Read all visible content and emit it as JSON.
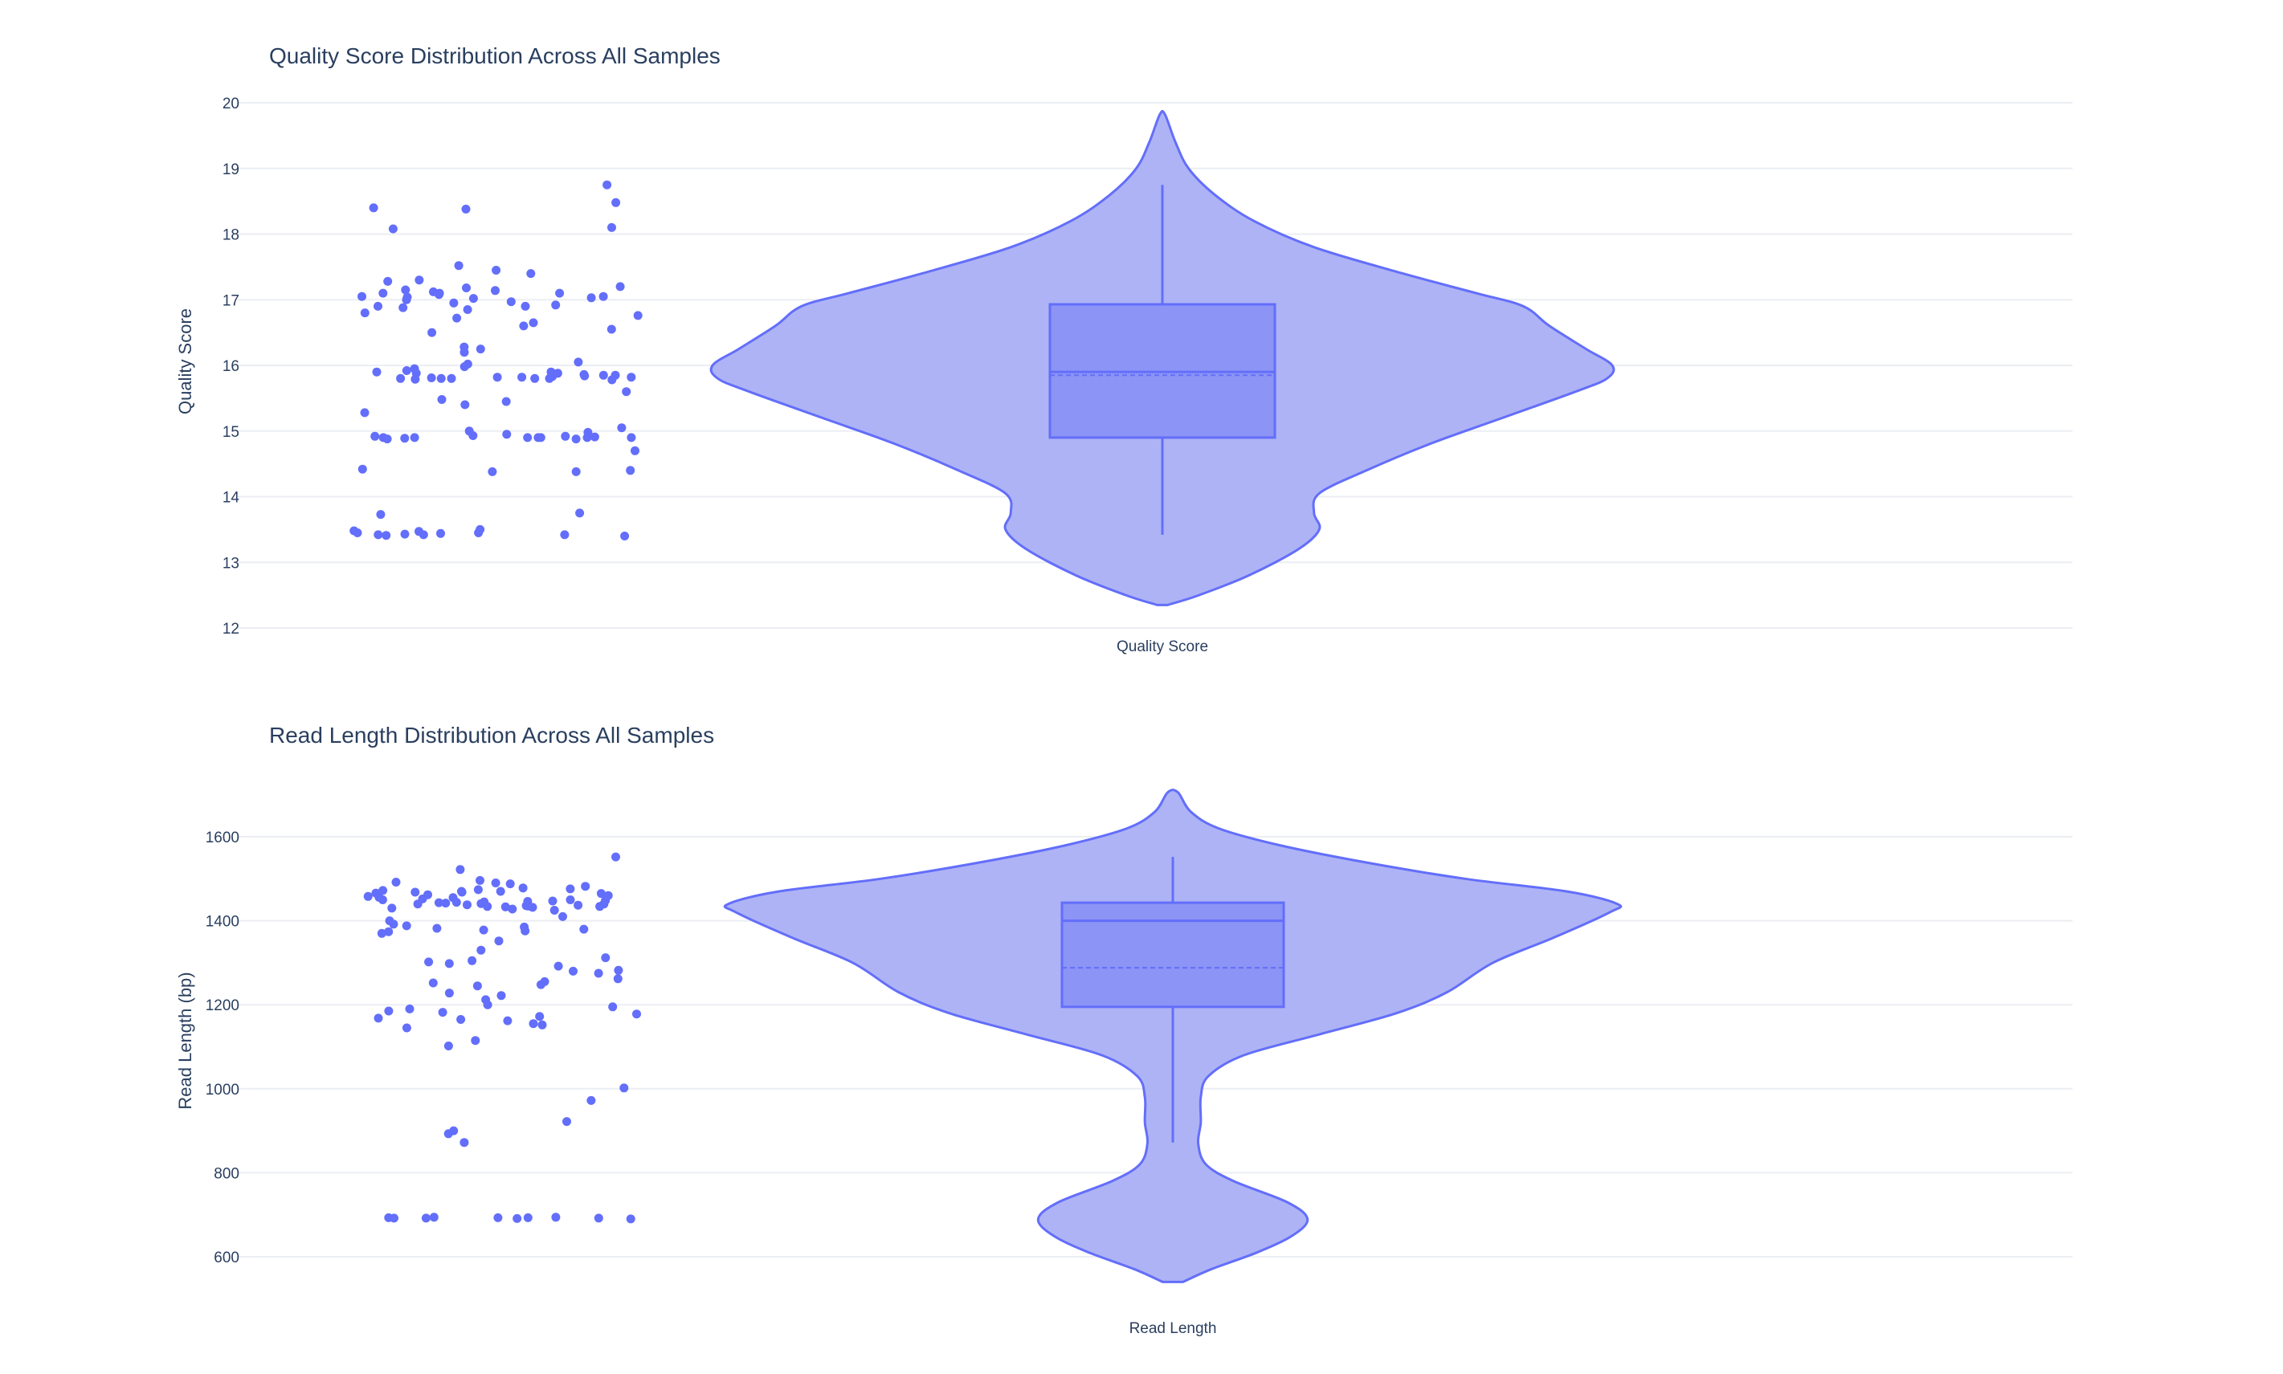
{
  "colors": {
    "accent": "#636efa",
    "violet_fill": "#aeb3f5",
    "box_fill": "#8c94f5",
    "grid": "#ebeef3",
    "text": "#2a3f5f"
  },
  "chart_data": [
    {
      "type": "violin",
      "title": "Quality Score Distribution Across All Samples",
      "ylabel": "Quality Score",
      "xlabel": "",
      "category": "Quality Score",
      "ylim": [
        12,
        20
      ],
      "yticks": [
        12,
        13,
        14,
        15,
        16,
        17,
        18,
        19,
        20
      ],
      "grid": true,
      "box": {
        "q1": 14.9,
        "median": 15.9,
        "mean": 15.85,
        "q3": 16.93,
        "lower_whisker": 13.42,
        "upper_whisker": 18.75
      },
      "kde_range": [
        12.35,
        19.82
      ],
      "kde_width": [
        [
          12.35,
          0.02
        ],
        [
          12.5,
          0.14
        ],
        [
          12.8,
          0.33
        ],
        [
          13.2,
          0.52
        ],
        [
          13.5,
          0.6
        ],
        [
          13.75,
          0.58
        ],
        [
          14.05,
          0.6
        ],
        [
          14.4,
          0.78
        ],
        [
          14.8,
          1.02
        ],
        [
          15.2,
          1.3
        ],
        [
          15.6,
          1.58
        ],
        [
          15.8,
          1.7
        ],
        [
          16.0,
          1.72
        ],
        [
          16.25,
          1.62
        ],
        [
          16.6,
          1.48
        ],
        [
          16.9,
          1.38
        ],
        [
          17.1,
          1.2
        ],
        [
          17.4,
          0.92
        ],
        [
          17.8,
          0.58
        ],
        [
          18.2,
          0.35
        ],
        [
          18.6,
          0.2
        ],
        [
          19.0,
          0.1
        ],
        [
          19.4,
          0.05
        ],
        [
          19.82,
          0.01
        ]
      ],
      "points": [
        18.75,
        18.48,
        18.4,
        18.38,
        18.1,
        18.08,
        17.52,
        17.45,
        17.4,
        17.3,
        17.28,
        17.2,
        17.18,
        17.15,
        17.14,
        17.12,
        17.1,
        17.1,
        17.1,
        17.08,
        17.05,
        17.05,
        17.04,
        17.03,
        17.02,
        17.0,
        16.97,
        16.95,
        16.92,
        16.9,
        16.9,
        16.88,
        16.85,
        16.8,
        16.76,
        16.72,
        16.65,
        16.6,
        16.55,
        16.5,
        16.28,
        16.25,
        16.2,
        16.05,
        16.02,
        15.98,
        15.95,
        15.92,
        15.9,
        15.9,
        15.88,
        15.88,
        15.86,
        15.85,
        15.85,
        15.84,
        15.83,
        15.82,
        15.82,
        15.82,
        15.81,
        15.8,
        15.8,
        15.8,
        15.8,
        15.8,
        15.79,
        15.78,
        15.6,
        15.48,
        15.45,
        15.4,
        15.28,
        15.05,
        15.0,
        14.98,
        14.95,
        14.93,
        14.92,
        14.92,
        14.91,
        14.9,
        14.9,
        14.9,
        14.9,
        14.9,
        14.9,
        14.9,
        14.89,
        14.88,
        14.88,
        14.7,
        14.42,
        14.4,
        14.38,
        14.38,
        13.75,
        13.73,
        13.5,
        13.48,
        13.47,
        13.45,
        13.45,
        13.44,
        13.43,
        13.42,
        13.42,
        13.42,
        13.41,
        13.4
      ]
    },
    {
      "type": "violin",
      "title": "Read Length Distribution Across All Samples",
      "ylabel": "Read Length (bp)",
      "xlabel": "",
      "category": "Read Length",
      "ylim": [
        560,
        1740
      ],
      "yticks": [
        600,
        800,
        1000,
        1200,
        1400,
        1600
      ],
      "grid": true,
      "box": {
        "q1": 1195,
        "median": 1400,
        "mean": 1288,
        "q3": 1443,
        "lower_whisker": 872,
        "upper_whisker": 1552
      },
      "kde_range": [
        540,
        1706
      ],
      "kde_width": [
        [
          540,
          0.04
        ],
        [
          570,
          0.15
        ],
        [
          610,
          0.33
        ],
        [
          650,
          0.47
        ],
        [
          690,
          0.53
        ],
        [
          730,
          0.45
        ],
        [
          780,
          0.24
        ],
        [
          820,
          0.13
        ],
        [
          870,
          0.1
        ],
        [
          920,
          0.11
        ],
        [
          980,
          0.11
        ],
        [
          1030,
          0.14
        ],
        [
          1080,
          0.28
        ],
        [
          1130,
          0.58
        ],
        [
          1180,
          0.88
        ],
        [
          1230,
          1.08
        ],
        [
          1300,
          1.26
        ],
        [
          1360,
          1.5
        ],
        [
          1420,
          1.72
        ],
        [
          1440,
          1.75
        ],
        [
          1470,
          1.55
        ],
        [
          1500,
          1.15
        ],
        [
          1540,
          0.75
        ],
        [
          1580,
          0.42
        ],
        [
          1620,
          0.18
        ],
        [
          1660,
          0.07
        ],
        [
          1706,
          0.02
        ]
      ],
      "points": [
        1552,
        1522,
        1496,
        1492,
        1490,
        1488,
        1482,
        1478,
        1476,
        1474,
        1472,
        1470,
        1470,
        1468,
        1468,
        1466,
        1465,
        1462,
        1460,
        1458,
        1456,
        1455,
        1452,
        1450,
        1450,
        1448,
        1447,
        1446,
        1445,
        1444,
        1443,
        1442,
        1441,
        1440,
        1440,
        1438,
        1437,
        1436,
        1435,
        1434,
        1434,
        1433,
        1432,
        1430,
        1428,
        1425,
        1410,
        1400,
        1392,
        1388,
        1385,
        1382,
        1380,
        1378,
        1376,
        1374,
        1370,
        1352,
        1330,
        1312,
        1305,
        1302,
        1298,
        1292,
        1282,
        1280,
        1275,
        1262,
        1255,
        1252,
        1248,
        1245,
        1228,
        1222,
        1212,
        1200,
        1195,
        1190,
        1185,
        1182,
        1178,
        1172,
        1168,
        1165,
        1162,
        1155,
        1152,
        1145,
        1115,
        1102,
        1002,
        972,
        922,
        900,
        893,
        872,
        694,
        694,
        693,
        693,
        693,
        692,
        692,
        692,
        691,
        690
      ]
    }
  ]
}
